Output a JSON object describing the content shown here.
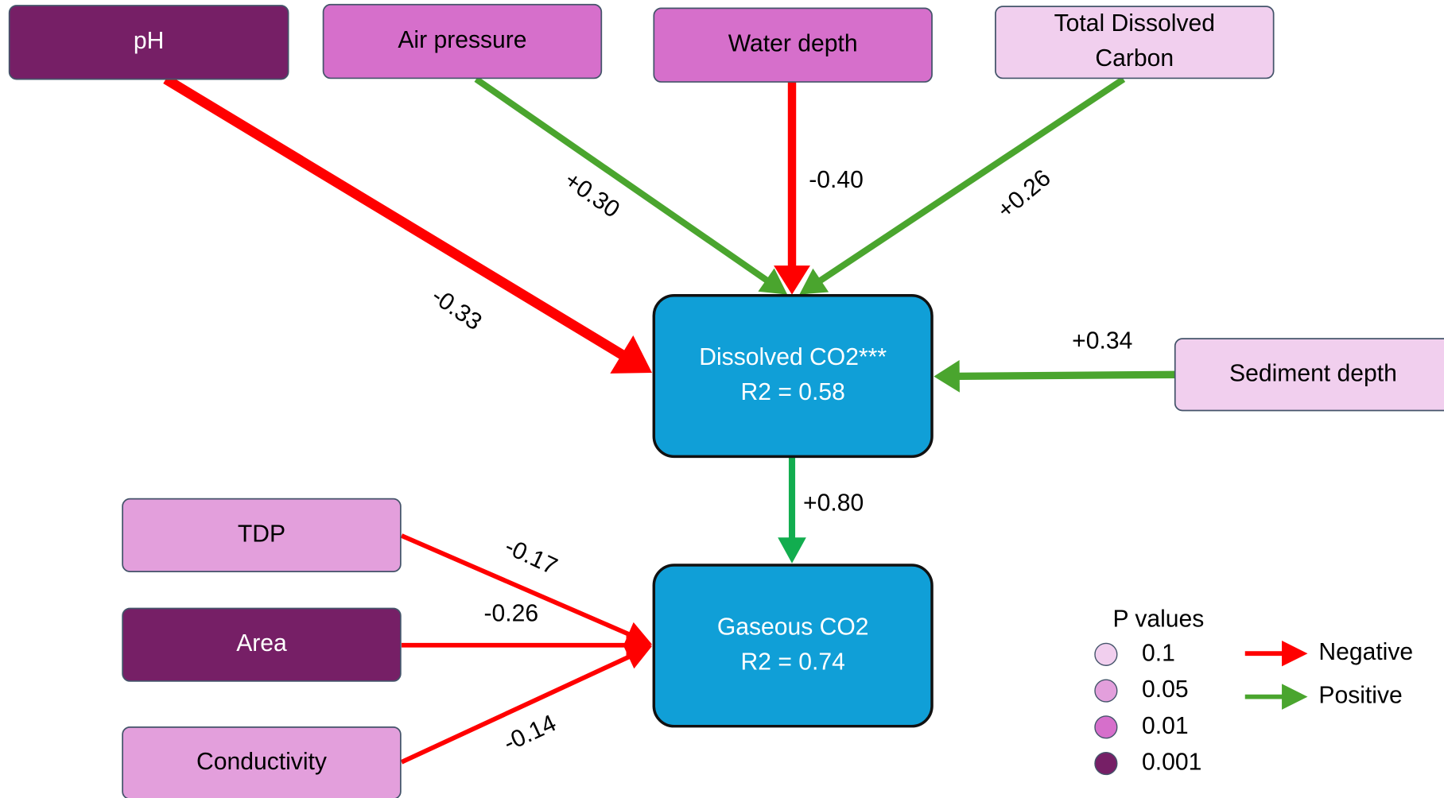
{
  "nodes": [
    {
      "label": [
        "pH"
      ],
      "color": "#761f66",
      "text_color": "#ffffff"
    },
    {
      "label": [
        "Air pressure"
      ],
      "color": "#d66fcb",
      "text_color": "#000000"
    },
    {
      "label": [
        "Water depth"
      ],
      "color": "#d66fcb",
      "text_color": "#000000"
    },
    {
      "label": [
        "Total Dissolved",
        "Carbon"
      ],
      "color": "#f1cfee",
      "text_color": "#000000"
    },
    {
      "label": [
        "Dissolved CO2***",
        "R2 = 0.58"
      ],
      "color": "#109fd7",
      "text_color": "#ffffff"
    },
    {
      "label": [
        "Sediment depth"
      ],
      "color": "#f1cfee",
      "text_color": "#000000"
    },
    {
      "label": [
        "TDP"
      ],
      "color": "#e39fdc",
      "text_color": "#000000"
    },
    {
      "label": [
        "Area"
      ],
      "color": "#761f66",
      "text_color": "#ffffff"
    },
    {
      "label": [
        "Conductivity"
      ],
      "color": "#e39fdc",
      "text_color": "#000000"
    },
    {
      "label": [
        "Gaseous CO2",
        "R2 = 0.74"
      ],
      "color": "#109fd7",
      "text_color": "#ffffff"
    }
  ],
  "edges": [
    {
      "label": "-0.33",
      "color": "#ff0000"
    },
    {
      "label": "+0.30",
      "color": "#4aa52e"
    },
    {
      "label": "-0.40",
      "color": "#ff0000"
    },
    {
      "label": "+0.26",
      "color": "#4aa52e"
    },
    {
      "label": "+0.34",
      "color": "#4aa52e"
    },
    {
      "label": "+0.80",
      "color": "#12ad4f"
    },
    {
      "label": "-0.17",
      "color": "#ff0000"
    },
    {
      "label": "-0.26",
      "color": "#ff0000"
    },
    {
      "label": "-0.14",
      "color": "#ff0000"
    }
  ],
  "legend": {
    "title": "P values",
    "levels": [
      {
        "label": "0.1",
        "color": "#f1cfee"
      },
      {
        "label": "0.05",
        "color": "#e39fdc"
      },
      {
        "label": "0.01",
        "color": "#d66fcb"
      },
      {
        "label": "0.001",
        "color": "#761f66"
      }
    ],
    "signs": [
      {
        "label": "Negative",
        "color": "#ff0000"
      },
      {
        "label": "Positive",
        "color": "#4aa52e"
      }
    ]
  }
}
